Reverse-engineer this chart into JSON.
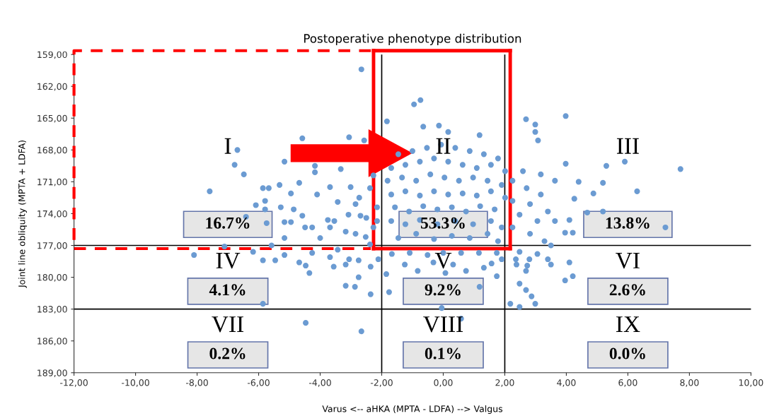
{
  "chart_data": {
    "type": "scatter",
    "title": "Postoperative phenotype distribution",
    "xlabel": "Varus <-- aHKA (MPTA - LDFA) --> Valgus",
    "ylabel": "Joint line obliquity (MPTA + LDFA)",
    "xlim": [
      -12,
      10
    ],
    "ylim": [
      189,
      159
    ],
    "xticks": [
      {
        "value": -12,
        "label": "-12,00"
      },
      {
        "value": -10,
        "label": "-10,00"
      },
      {
        "value": -8,
        "label": "-8,00"
      },
      {
        "value": -6,
        "label": "-6,00"
      },
      {
        "value": -4,
        "label": "-4,00"
      },
      {
        "value": -2,
        "label": "-2,00"
      },
      {
        "value": 0,
        "label": "0,00"
      },
      {
        "value": 2,
        "label": "2,00"
      },
      {
        "value": 4,
        "label": "4,00"
      },
      {
        "value": 6,
        "label": "6,00"
      },
      {
        "value": 8,
        "label": "8,00"
      },
      {
        "value": 10,
        "label": "10,00"
      }
    ],
    "yticks": [
      {
        "value": 159,
        "label": "159,00"
      },
      {
        "value": 162,
        "label": "162,00"
      },
      {
        "value": 165,
        "label": "165,00"
      },
      {
        "value": 168,
        "label": "168,00"
      },
      {
        "value": 171,
        "label": "171,00"
      },
      {
        "value": 174,
        "label": "174,00"
      },
      {
        "value": 177,
        "label": "177,00"
      },
      {
        "value": 180,
        "label": "180,00"
      },
      {
        "value": 183,
        "label": "183,00"
      },
      {
        "value": 186,
        "label": "186,00"
      },
      {
        "value": 189,
        "label": "189,00"
      }
    ],
    "grid": false,
    "marker": "circle",
    "ref_lines": [
      {
        "axis": "x",
        "value": -2,
        "color": "#000000"
      },
      {
        "axis": "x",
        "value": 2,
        "color": "#000000"
      },
      {
        "axis": "y",
        "value": 177,
        "color": "#000000"
      },
      {
        "axis": "y",
        "value": 183,
        "color": "#000000"
      }
    ],
    "annotations": [
      "I",
      "16.7%",
      "II",
      "53.3%",
      "III",
      "13.8%",
      "IV",
      "4.1%",
      "V",
      "9.2%",
      "VI",
      "2.6%",
      "VII",
      "0.2%",
      "VIII",
      "0.1%",
      "IX",
      "0.0%"
    ],
    "series": [
      {
        "color": "#6b9bd2",
        "x": [
          -0.95,
          -0.74,
          -1.83,
          -0.65,
          -0.14,
          0.16,
          1.18,
          2.69,
          2.99,
          2.99,
          3.08,
          3.98,
          3.98,
          5.3,
          5.9,
          7.71,
          6.3,
          5.19,
          4.88,
          4.4,
          4.1,
          3.96,
          4.21,
          4.68,
          5.19,
          7.22,
          4.26,
          -2.66,
          -4.58,
          -3.06,
          -2.57,
          -6.69,
          -6.78,
          -6.48,
          -5.16,
          -7.59,
          -5.86,
          -5.67,
          -6.09,
          -5.79,
          -5.79,
          -5.28,
          -4.86,
          -4.68,
          -5.32,
          -4.95,
          -4.17,
          -4.17,
          -3.33,
          -4.58,
          -5.16,
          -4.95,
          -5.74,
          -6.41,
          -5.16,
          -7.11,
          -5.58,
          -4.49,
          -3.75,
          -3.68,
          -3.17,
          -4.1,
          -3.68,
          -3.43,
          -2.85,
          -2.69,
          -3.01,
          -2.27,
          -2.52,
          -4.0,
          -2.27,
          -4.26,
          -8.1,
          -6.18,
          -5.86,
          -5.46,
          -5.16,
          -4.68,
          -4.47,
          -4.35,
          -4.26,
          -3.68,
          -3.56,
          -3.17,
          -3.06,
          -2.75,
          -2.75,
          -3.17,
          -2.87,
          -2.36,
          -2.36,
          -2.11,
          -5.86,
          -4.47,
          -2.66,
          -3.43,
          -1.76,
          -1.85,
          -0.83,
          -1.25,
          -0.05,
          0.58,
          1.18,
          2.48,
          2.69,
          2.87,
          2.99,
          2.48,
          2.18,
          3.96,
          4.21,
          4.1,
          3.5,
          3.4,
          3.06,
          2.8,
          2.73,
          2.69,
          2.38,
          2.36,
          1.9,
          1.57,
          1.74,
          1.32,
          0.74,
          0.32,
          0.07,
          -0.32,
          -0.51,
          1.74,
          1.16,
          0.58,
          0.0,
          -1.09,
          -1.67,
          3.5,
          2.48,
          -1.46,
          -1.0,
          -0.53,
          -0.07,
          0.39,
          0.86,
          1.32,
          1.78,
          -1.69,
          -1.23,
          -0.76,
          -0.3,
          0.16,
          0.63,
          1.09,
          1.55,
          2.01,
          -1.81,
          -1.34,
          -0.88,
          -0.42,
          0.04,
          0.51,
          0.97,
          1.44,
          1.9,
          -1.69,
          -1.23,
          -0.76,
          -0.3,
          0.16,
          0.63,
          1.09,
          1.55,
          2.01,
          -1.57,
          -1.11,
          -0.65,
          -0.19,
          0.28,
          0.74,
          1.2,
          1.67,
          -1.69,
          -1.23,
          -0.76,
          -0.19,
          0.39,
          0.97,
          1.55,
          1.9,
          -1.46,
          -0.88,
          -0.3,
          0.28,
          0.86,
          1.44,
          1.78,
          2.25,
          2.71,
          2.25,
          2.82,
          3.17,
          2.48,
          3.06,
          3.4,
          2.25,
          2.82,
          3.29,
          3.63,
          2.59,
          3.17,
          3.63,
          -2.38,
          -2.73,
          -2.15,
          -2.5,
          -2.15,
          -2.85,
          -2.38,
          -3.08,
          -3.54
        ],
        "values": [
          163.7,
          163.3,
          165.3,
          165.8,
          165.7,
          166.3,
          166.6,
          165.1,
          165.6,
          166.3,
          167.1,
          164.8,
          169.3,
          169.5,
          169.1,
          169.8,
          171.9,
          171.1,
          172.1,
          171.0,
          174.6,
          175.8,
          175.8,
          173.9,
          173.8,
          175.3,
          172.6,
          160.4,
          166.9,
          166.8,
          167.1,
          168.0,
          169.4,
          170.3,
          169.1,
          171.9,
          171.6,
          171.6,
          173.2,
          172.8,
          173.6,
          173.4,
          173.6,
          171.1,
          171.3,
          172.1,
          169.5,
          170.1,
          169.8,
          174.2,
          174.8,
          174.8,
          174.9,
          174.3,
          176.3,
          177.1,
          177.0,
          175.3,
          174.6,
          175.3,
          175.7,
          172.2,
          171.5,
          172.9,
          173.1,
          174.2,
          171.5,
          175.3,
          176.2,
          176.3,
          170.4,
          175.3,
          177.9,
          177.6,
          178.4,
          178.4,
          177.9,
          178.6,
          178.9,
          179.6,
          177.7,
          178.1,
          179.0,
          178.8,
          178.3,
          178.4,
          180.0,
          180.8,
          180.9,
          181.6,
          179.0,
          178.3,
          182.5,
          184.3,
          185.1,
          177.4,
          181.4,
          179.7,
          179.4,
          178.8,
          182.9,
          183.9,
          180.9,
          180.6,
          181.2,
          181.8,
          182.5,
          182.8,
          182.5,
          180.3,
          179.9,
          178.6,
          178.8,
          178.3,
          177.8,
          178.3,
          178.9,
          179.4,
          178.8,
          178.3,
          178.3,
          178.7,
          179.9,
          179.1,
          179.4,
          178.8,
          179.6,
          178.6,
          177.9,
          177.7,
          177.7,
          177.7,
          177.7,
          177.7,
          177.8,
          177.0,
          177.6,
          168.4,
          168.1,
          167.8,
          167.5,
          167.8,
          168.1,
          168.4,
          168.8,
          169.7,
          169.4,
          169.1,
          168.8,
          169.1,
          169.4,
          169.7,
          169.4,
          170.0,
          170.9,
          170.6,
          170.9,
          170.3,
          170.6,
          170.9,
          170.6,
          170.9,
          171.3,
          172.2,
          171.9,
          172.3,
          171.9,
          172.2,
          172.1,
          172.3,
          171.9,
          172.5,
          173.4,
          173.8,
          173.3,
          173.6,
          173.4,
          173.8,
          173.3,
          173.6,
          174.7,
          175.0,
          174.6,
          175.0,
          174.7,
          175.0,
          174.7,
          175.3,
          176.3,
          175.9,
          176.4,
          176.1,
          176.3,
          175.9,
          176.6,
          170.9,
          171.6,
          172.8,
          173.1,
          172.2,
          174.1,
          174.7,
          173.8,
          175.3,
          175.9,
          176.6,
          174.7,
          170.0,
          170.3,
          170.9,
          171.6,
          172.5,
          173.4,
          174.4,
          174.7,
          175.9,
          176.9,
          174.1,
          174.7
        ]
      }
    ]
  }
}
